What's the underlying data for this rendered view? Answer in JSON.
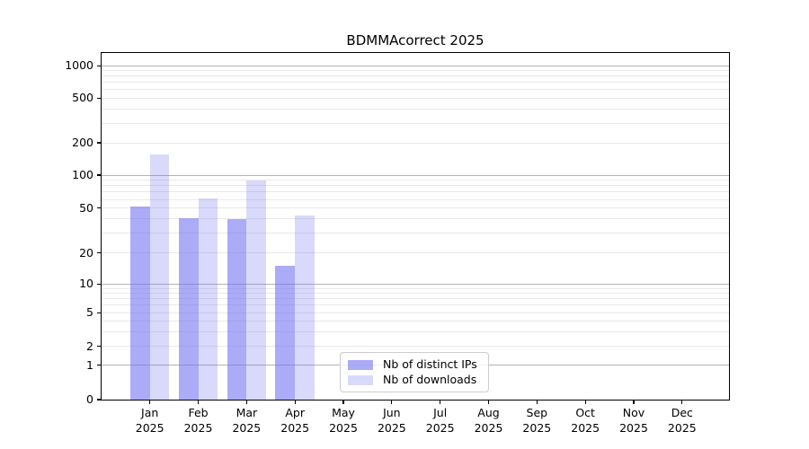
{
  "chart_data": {
    "type": "bar",
    "title": "BDMMAcorrect 2025",
    "categories": [
      "Jan",
      "Feb",
      "Mar",
      "Apr",
      "May",
      "Jun",
      "Jul",
      "Aug",
      "Sep",
      "Oct",
      "Nov",
      "Dec"
    ],
    "year_label": "2025",
    "series": [
      {
        "name": "Nb of distinct IPs",
        "values": [
          52,
          41,
          40,
          15,
          0,
          0,
          0,
          0,
          0,
          0,
          0,
          0
        ],
        "color": "rgba(102,102,242,0.55)"
      },
      {
        "name": "Nb of downloads",
        "values": [
          156,
          61,
          90,
          43,
          0,
          0,
          0,
          0,
          0,
          0,
          0,
          0
        ],
        "color": "rgba(102,102,242,0.25)"
      }
    ],
    "y_ticks": [
      0,
      1,
      2,
      5,
      10,
      20,
      50,
      100,
      200,
      500,
      1000
    ],
    "scale": "symlog",
    "ylim": [
      0,
      1500
    ],
    "grid": true,
    "legend_position": "inside-bottom-center-left"
  },
  "colors": {
    "axis": "#000000",
    "major_grid": "#b5b5b5",
    "minor_grid": "#e9e9e9",
    "legend_border": "#cccccc",
    "bar_distinct_ips": "rgba(102,102,242,0.55)",
    "bar_downloads": "rgba(102,102,242,0.25)"
  }
}
